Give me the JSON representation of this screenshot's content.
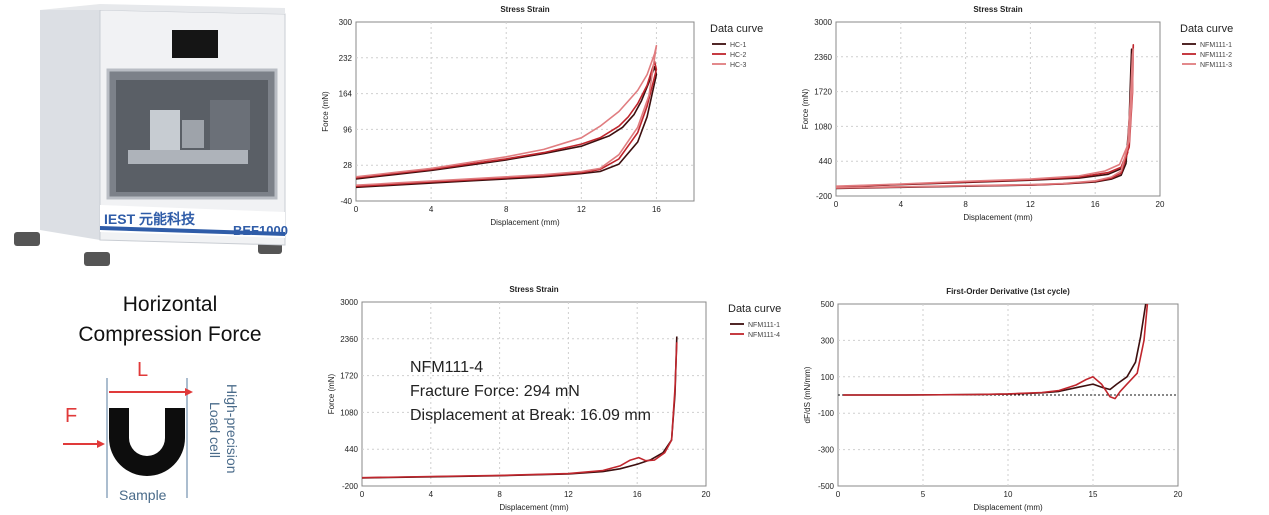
{
  "machine": {
    "brand_label": "IEST 元能科技",
    "model_label": "BEF1000"
  },
  "schematic": {
    "title": [
      "Horizontal",
      "Compression Force"
    ],
    "length_label": "L",
    "force_label": "F",
    "sample_label": "Sample",
    "load_cell_label": [
      "High-precision",
      "Load cell"
    ],
    "colors": {
      "arrow": "#e03a3a",
      "sample": "#0d0d0d",
      "load_cell_text": "#4a6b8a"
    }
  },
  "chart_data": [
    {
      "type": "line",
      "title": "Stress Strain",
      "xlabel": "Displacement (mm)",
      "ylabel": "Force (mN)",
      "xlim": [
        0,
        18
      ],
      "ylim": [
        -40,
        300
      ],
      "xticks": [
        0,
        4,
        8,
        12,
        16
      ],
      "yticks": [
        -40,
        28,
        96,
        164,
        232,
        300
      ],
      "legend_title": "Data curve",
      "legend_position": "outside-right",
      "grid": true,
      "series": [
        {
          "name": "HC-1",
          "color": "#3d0f0f",
          "x": [
            0,
            2,
            4,
            6,
            8,
            10,
            12,
            13,
            14,
            15,
            15.5,
            16,
            15.9,
            15.6,
            15.2,
            14.8,
            14.2,
            13.5,
            12,
            10,
            8,
            6,
            4,
            2,
            0
          ],
          "y": [
            -14,
            -10,
            -6,
            -2,
            2,
            6,
            12,
            16,
            30,
            72,
            120,
            200,
            215,
            185,
            150,
            124,
            100,
            84,
            64,
            50,
            38,
            28,
            18,
            10,
            2
          ]
        },
        {
          "name": "HC-2",
          "color": "#c0262d",
          "x": [
            0,
            2,
            4,
            6,
            8,
            10,
            12,
            13,
            14,
            15,
            15.5,
            16,
            15.9,
            15.5,
            15,
            14.5,
            14,
            13,
            12,
            10,
            8,
            6,
            4,
            2,
            0
          ],
          "y": [
            -12,
            -8,
            -4,
            0,
            4,
            8,
            14,
            20,
            40,
            90,
            140,
            210,
            225,
            180,
            145,
            120,
            102,
            80,
            68,
            52,
            40,
            30,
            20,
            12,
            4
          ]
        },
        {
          "name": "HC-3",
          "color": "#e07d80",
          "x": [
            0,
            2,
            4,
            6,
            8,
            10,
            12,
            13,
            14,
            15,
            15.6,
            16,
            15.9,
            15.5,
            15,
            14.5,
            14,
            13,
            12,
            10,
            8,
            6,
            4,
            2,
            0
          ],
          "y": [
            -10,
            -6,
            -2,
            2,
            6,
            10,
            16,
            22,
            48,
            100,
            160,
            255,
            240,
            200,
            170,
            150,
            130,
            102,
            80,
            58,
            44,
            33,
            22,
            14,
            6
          ]
        }
      ]
    },
    {
      "type": "line",
      "title": "Stress Strain",
      "xlabel": "Displacement (mm)",
      "ylabel": "Force (mN)",
      "xlim": [
        0,
        20
      ],
      "ylim": [
        -200,
        3000
      ],
      "xticks": [
        0,
        4,
        8,
        12,
        16,
        20
      ],
      "yticks": [
        -200,
        440,
        1080,
        1720,
        2360,
        3000
      ],
      "legend_title": "Data curve",
      "legend_position": "outside-right",
      "grid": true,
      "series": [
        {
          "name": "NFM111-1",
          "color": "#3d0f0f",
          "x": [
            0,
            4,
            8,
            12,
            14,
            16,
            17,
            17.6,
            17.9,
            18.1,
            18.2,
            18.25,
            18.2,
            18,
            17.6,
            16.8,
            15,
            12,
            8,
            4,
            0
          ],
          "y": [
            -60,
            -40,
            -20,
            0,
            20,
            60,
            110,
            180,
            400,
            1200,
            2100,
            2500,
            1500,
            600,
            300,
            200,
            130,
            90,
            50,
            10,
            -30
          ]
        },
        {
          "name": "NFM111-2",
          "color": "#c0262d",
          "x": [
            0,
            4,
            8,
            12,
            14,
            16,
            17,
            17.6,
            18,
            18.2,
            18.3,
            18.35,
            18.3,
            18.1,
            17.6,
            16.8,
            15,
            12,
            8,
            4,
            0
          ],
          "y": [
            -55,
            -35,
            -15,
            5,
            25,
            70,
            130,
            220,
            600,
            1600,
            2300,
            2580,
            1700,
            700,
            330,
            230,
            150,
            100,
            60,
            15,
            -25
          ]
        },
        {
          "name": "NFM111-3",
          "color": "#e07d80",
          "x": [
            0,
            4,
            8,
            12,
            14,
            16,
            17,
            17.6,
            18,
            18.2,
            18.3,
            18.35,
            18.3,
            18.1,
            17.5,
            16.6,
            15,
            12,
            8,
            4,
            0
          ],
          "y": [
            -50,
            -30,
            -10,
            10,
            30,
            80,
            150,
            260,
            700,
            1700,
            2400,
            2500,
            1800,
            800,
            380,
            260,
            170,
            110,
            70,
            20,
            -20
          ]
        }
      ]
    },
    {
      "type": "line",
      "title": "Stress Strain",
      "xlabel": "Displacement (mm)",
      "ylabel": "Force (mN)",
      "xlim": [
        0,
        20
      ],
      "ylim": [
        -200,
        3000
      ],
      "xticks": [
        0,
        4,
        8,
        12,
        16,
        20
      ],
      "yticks": [
        -200,
        440,
        1080,
        1720,
        2360,
        3000
      ],
      "legend_title": "Data curve",
      "legend_position": "outside-right",
      "grid": true,
      "annotations": [
        "NFM111-4",
        "Fracture Force: 294 mN",
        "Displacement at Break: 16.09 mm"
      ],
      "series": [
        {
          "name": "NFM111-1",
          "color": "#3d0f0f",
          "x": [
            0,
            4,
            8,
            12,
            14,
            15,
            16,
            16.8,
            17.5,
            18,
            18.2,
            18.3
          ],
          "y": [
            -60,
            -40,
            -20,
            10,
            50,
            100,
            180,
            260,
            380,
            600,
            1400,
            2400
          ]
        },
        {
          "name": "NFM111-4",
          "color": "#c0262d",
          "x": [
            0,
            4,
            8,
            12,
            14,
            15,
            15.6,
            16.09,
            16.5,
            17,
            17.6,
            18,
            18.2,
            18.3
          ],
          "y": [
            -55,
            -35,
            -15,
            15,
            70,
            150,
            250,
            294,
            240,
            250,
            380,
            600,
            1500,
            2300
          ]
        }
      ]
    },
    {
      "type": "line",
      "title": "First-Order Derivative (1st cycle)",
      "xlabel": "Displacement (mm)",
      "ylabel": "dF/dS (mN/mm)",
      "xlim": [
        0,
        20
      ],
      "ylim": [
        -500,
        500
      ],
      "xticks": [
        0,
        5,
        10,
        15,
        20
      ],
      "yticks": [
        -500,
        -300,
        -100,
        100,
        300,
        500
      ],
      "grid": true,
      "reference_line_y": 0,
      "series": [
        {
          "name": "",
          "color": "#3d0f0f",
          "x": [
            0.3,
            4,
            8,
            10,
            12,
            13,
            14,
            15,
            15.6,
            16,
            16.4,
            17,
            17.5,
            17.8,
            18.1
          ],
          "y": [
            0,
            0,
            2,
            5,
            12,
            20,
            40,
            60,
            40,
            30,
            60,
            100,
            180,
            320,
            500
          ]
        },
        {
          "name": "",
          "color": "#c0262d",
          "x": [
            0.3,
            4,
            8,
            10,
            12,
            13,
            14,
            14.6,
            15,
            15.5,
            16,
            16.3,
            16.6,
            17,
            17.6,
            18,
            18.2
          ],
          "y": [
            0,
            0,
            3,
            6,
            14,
            25,
            55,
            85,
            100,
            60,
            -10,
            -20,
            20,
            60,
            120,
            300,
            500
          ]
        }
      ]
    }
  ]
}
